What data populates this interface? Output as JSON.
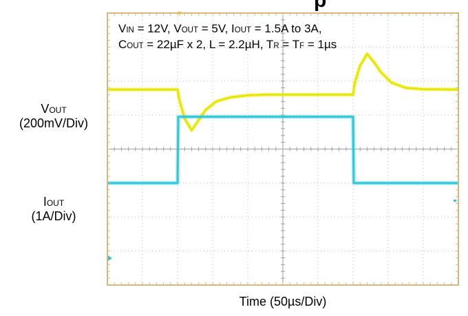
{
  "title_fragment": "p",
  "conditions": {
    "line1": {
      "v_in_sym": "V",
      "v_in_sub": "IN",
      "v_in_val": " = 12V, ",
      "v_out_sym": "V",
      "v_out_sub": "OUT",
      "v_out_val": " = 5V, ",
      "i_out_sym": "I",
      "i_out_sub": "OUT",
      "i_out_val": " = 1.5A to 3A,"
    },
    "line2": {
      "c_out_sym": "C",
      "c_out_sub": "OUT",
      "c_out_val": " = 22µF x 2, L = 2.2µH, ",
      "tr_sym": "T",
      "tr_sub": "R",
      "tr_mid": " = ",
      "tf_sym": "T",
      "tf_sub": "F",
      "tf_val": " = 1µs"
    }
  },
  "channels": {
    "vout": {
      "sym": "V",
      "sub": "OUT",
      "scale": "(200mV/Div)"
    },
    "iout": {
      "sym": "I",
      "sub": "OUT",
      "scale": "(1A/Div)"
    }
  },
  "xlabel": "Time  (50µs/Div)",
  "colors": {
    "frame": "#D9B680",
    "grid": "#BDBDBD",
    "vout_trace": "#E6E600",
    "iout_trace": "#30C8D8"
  },
  "chart_data": {
    "type": "line",
    "x_unit": "div",
    "xlim": [
      0,
      10
    ],
    "ylim": [
      -4,
      4
    ],
    "grid": true,
    "series": [
      {
        "name": "VOUT",
        "x": [
          0,
          2.0,
          2.05,
          2.2,
          2.4,
          2.6,
          2.8,
          3.1,
          3.5,
          4.0,
          4.5,
          5.0,
          6.0,
          7.0,
          7.05,
          7.2,
          7.4,
          7.6,
          7.8,
          8.1,
          8.5,
          9.0,
          10
        ],
        "y": [
          1.75,
          1.75,
          1.45,
          0.9,
          0.55,
          0.85,
          1.15,
          1.4,
          1.52,
          1.58,
          1.6,
          1.6,
          1.6,
          1.6,
          1.95,
          2.45,
          2.8,
          2.55,
          2.25,
          1.95,
          1.8,
          1.76,
          1.75
        ]
      },
      {
        "name": "IOUT",
        "x": [
          0,
          2.0,
          2.02,
          7.0,
          7.02,
          10
        ],
        "y": [
          -1.0,
          -1.0,
          0.95,
          0.95,
          -1.0,
          -1.0
        ]
      }
    ]
  }
}
